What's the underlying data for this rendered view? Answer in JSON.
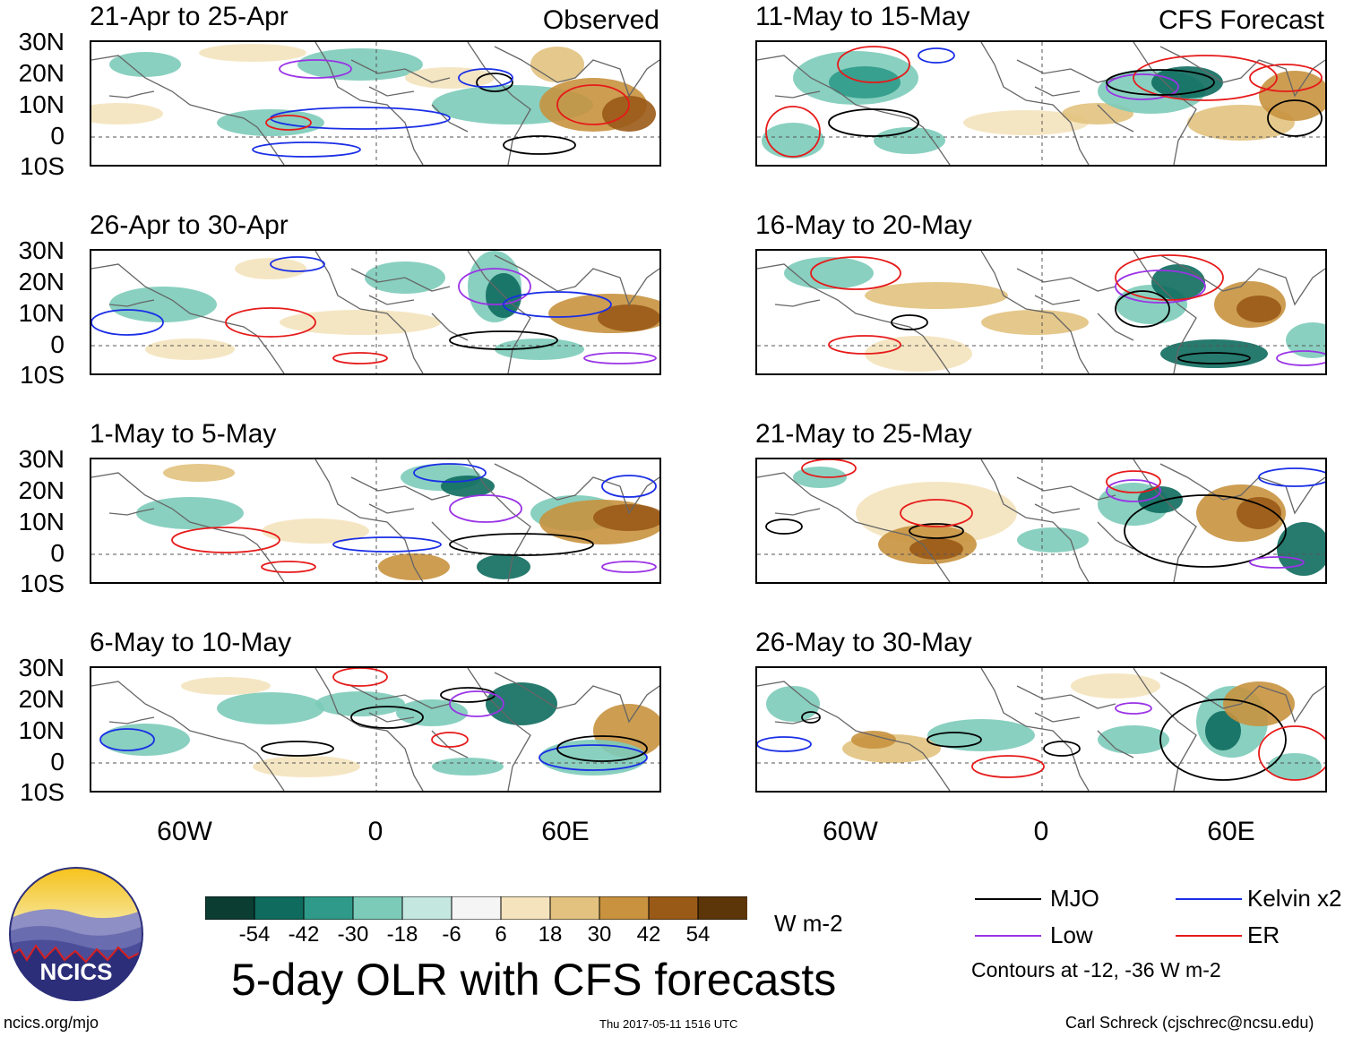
{
  "header": {
    "observed_label": "Observed",
    "forecast_label": "CFS Forecast"
  },
  "observed_panels": [
    {
      "title": "21-Apr to 25-Apr"
    },
    {
      "title": "26-Apr to 30-Apr"
    },
    {
      "title": "1-May to 5-May"
    },
    {
      "title": "6-May to 10-May"
    }
  ],
  "forecast_panels": [
    {
      "title": "11-May to 15-May"
    },
    {
      "title": "16-May to 20-May"
    },
    {
      "title": "21-May to 25-May"
    },
    {
      "title": "26-May to 30-May"
    }
  ],
  "axes": {
    "lat_ticks": [
      "30N",
      "20N",
      "10N",
      "0",
      "10S"
    ],
    "lon_ticks": [
      "60W",
      "0",
      "60E"
    ]
  },
  "colorbar": {
    "colors": [
      "#0b3d33",
      "#0e6b5e",
      "#2f9a89",
      "#7ccbb9",
      "#c4e8df",
      "#f5f5f5",
      "#f4e3bd",
      "#e2c27e",
      "#c8923f",
      "#9a5a17",
      "#5c3608"
    ],
    "labels": [
      "-54",
      "-42",
      "-30",
      "-18",
      "-6",
      "6",
      "18",
      "30",
      "42",
      "54"
    ],
    "units": "W m-2"
  },
  "legend": {
    "items": [
      {
        "label": "MJO",
        "color": "#000000"
      },
      {
        "label": "Kelvin x2",
        "color": "#1a2ee6"
      },
      {
        "label": "Low",
        "color": "#9a33e6"
      },
      {
        "label": "ER",
        "color": "#e61a1a"
      }
    ],
    "contour_note": "Contours at -12, -36 W m-2"
  },
  "logo": {
    "text": "NCICS"
  },
  "main_title": "5-day OLR with CFS forecasts",
  "footer": {
    "website": "ncics.org/mjo",
    "timestamp": "Thu 2017-05-11 1516 UTC",
    "author": "Carl Schreck (cjschrec@ncsu.edu)"
  }
}
